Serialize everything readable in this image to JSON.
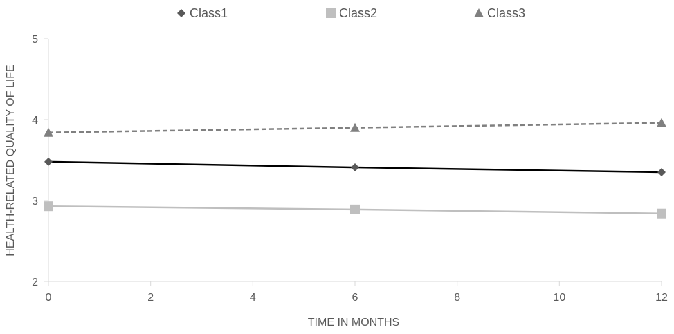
{
  "chart_data": {
    "type": "line",
    "xlabel": "TIME IN MONTHS",
    "ylabel": "HEALTH-RELATED QUALITY OF LIFE",
    "xlim": [
      0,
      12
    ],
    "ylim": [
      2,
      5
    ],
    "x_ticks": [
      0,
      2,
      4,
      6,
      8,
      10,
      12
    ],
    "y_ticks": [
      2,
      3,
      4,
      5
    ],
    "grid": false,
    "legend_position": "top",
    "series": [
      {
        "name": "Class1",
        "marker": "diamond",
        "line_style": "solid",
        "color": "#000000",
        "marker_color": "#595959",
        "x": [
          0,
          6,
          12
        ],
        "y": [
          3.48,
          3.41,
          3.35
        ]
      },
      {
        "name": "Class2",
        "marker": "square",
        "line_style": "solid",
        "color": "#bfbfbf",
        "marker_color": "#bfbfbf",
        "x": [
          0,
          6,
          12
        ],
        "y": [
          2.93,
          2.89,
          2.84
        ]
      },
      {
        "name": "Class3",
        "marker": "triangle",
        "line_style": "dashed",
        "color": "#808080",
        "marker_color": "#808080",
        "x": [
          0,
          6,
          12
        ],
        "y": [
          3.84,
          3.9,
          3.96
        ]
      }
    ]
  }
}
